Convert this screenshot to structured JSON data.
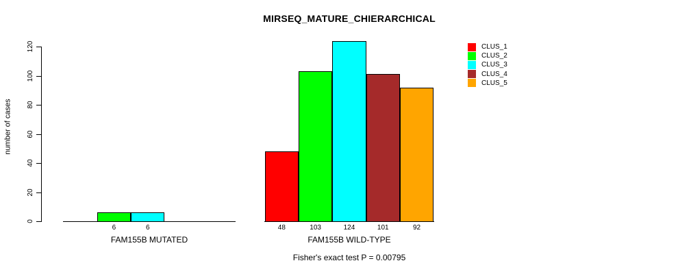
{
  "chart_data": {
    "type": "bar",
    "title": "MIRSEQ_MATURE_CHIERARCHICAL",
    "ylabel": "number of cases",
    "ylim": [
      0,
      124
    ],
    "yticks": [
      0,
      20,
      40,
      60,
      80,
      100,
      120
    ],
    "grid": false,
    "categories": [
      "CLUS_1",
      "CLUS_2",
      "CLUS_3",
      "CLUS_4",
      "CLUS_5"
    ],
    "colors": [
      "#ff0000",
      "#00ff00",
      "#00ffff",
      "#a52a2a",
      "#ffa500"
    ],
    "groups": [
      {
        "label": "FAM155B MUTATED",
        "values": [
          0,
          6,
          6,
          0,
          0
        ]
      },
      {
        "label": "FAM155B WILD-TYPE",
        "values": [
          48,
          103,
          124,
          101,
          92
        ]
      }
    ],
    "bar_value_labels_shown_only_for_nonzero": true,
    "legend": [
      "CLUS_1",
      "CLUS_2",
      "CLUS_3",
      "CLUS_4",
      "CLUS_5"
    ],
    "legend_position": "topright",
    "footnote": "Fisher's exact test P = 0.00795"
  }
}
